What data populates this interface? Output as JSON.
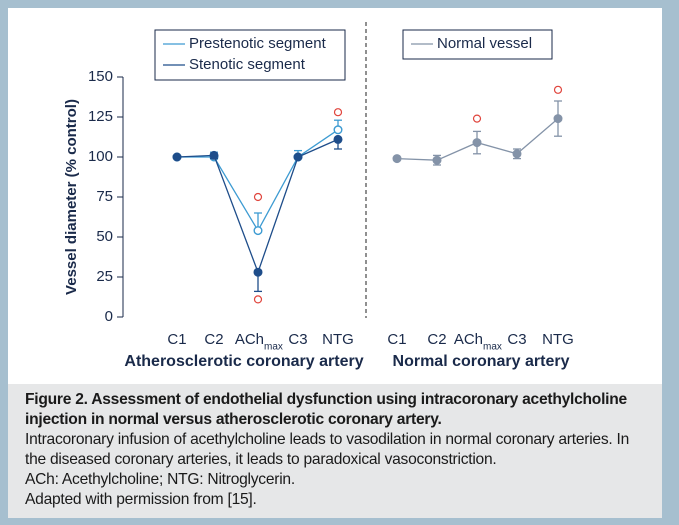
{
  "chart_data": [
    {
      "type": "line",
      "ylabel": "Vessel diameter (% control)",
      "ylim": [
        0,
        150
      ],
      "yticks": [
        0,
        25,
        50,
        75,
        100,
        125,
        150
      ],
      "x_label": "Atherosclerotic coronary artery",
      "categories": [
        "C1",
        "C2",
        {
          "text": "ACh",
          "sub": "max"
        },
        "C3",
        "NTG"
      ],
      "series": [
        {
          "name": "Prestenotic segment",
          "color": "#3d9bd2",
          "marker": "open",
          "error_side": "up",
          "values": [
            100,
            100,
            54,
            100,
            117
          ],
          "errors": [
            0,
            3,
            11,
            4,
            6
          ]
        },
        {
          "name": "Stenotic segment",
          "color": "#1e4d8a",
          "marker": "filled",
          "error_side": "down",
          "values": [
            100,
            101,
            28,
            100,
            111
          ],
          "errors": [
            0,
            2,
            12,
            0,
            6
          ]
        }
      ],
      "outliers": {
        "color": "#e0443c",
        "values": [
          [],
          [],
          [
            75,
            11
          ],
          [],
          [
            128
          ]
        ]
      }
    },
    {
      "type": "line",
      "x_label": "Normal coronary artery",
      "categories": [
        "C1",
        "C2",
        {
          "text": "ACh",
          "sub": "max"
        },
        "C3",
        "NTG"
      ],
      "series": [
        {
          "name": "Normal vessel",
          "color": "#8493a8",
          "marker": "filled",
          "error_side": "both",
          "values": [
            99,
            98,
            109,
            102,
            124
          ],
          "errors": [
            0,
            3,
            7,
            3,
            11
          ]
        }
      ],
      "outliers": {
        "color": "#e0443c",
        "values": [
          [],
          [],
          [
            124
          ],
          [],
          [
            142
          ]
        ]
      }
    }
  ],
  "caption": {
    "title": "Figure 2. Assessment of endothelial dysfunction using intracoronary acethylcholine injection in normal versus atherosclerotic coronary artery.",
    "lines": [
      "Intracoronary infusion of acethylcholine leads to vasodilation in normal coronary arteries. In the diseased coronary arteries, it leads to paradoxical vasoconstriction.",
      "ACh: Acethylcholine; NTG: Nitroglycerin.",
      "Adapted with permission from [15]."
    ]
  }
}
